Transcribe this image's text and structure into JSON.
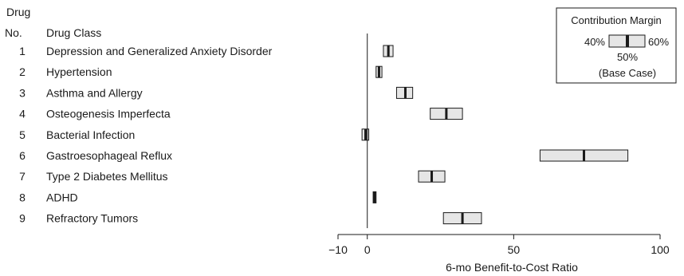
{
  "chart_data": {
    "type": "range_bar",
    "header": {
      "drug_label_line1": "Drug",
      "drug_label_line2": "No.",
      "class_label": "Drug Class"
    },
    "xlabel": "6-mo Benefit-to-Cost Ratio",
    "xlim": [
      -10,
      100
    ],
    "xticks": [
      -10,
      0,
      50,
      100
    ],
    "xtick_labels": [
      "−10",
      "0",
      "50",
      "100"
    ],
    "legend": {
      "title": "Contribution Margin",
      "low_label": "40%",
      "high_label": "60%",
      "base_label": "50%",
      "base_caption": "(Base Case)",
      "placement": "top-right"
    },
    "rows": [
      {
        "no": "1",
        "label": "Depression and Generalized Anxiety Disorder",
        "low": 5.5,
        "base": 7.2,
        "high": 8.8
      },
      {
        "no": "2",
        "label": "Hypertension",
        "low": 3.0,
        "base": 4.0,
        "high": 5.0
      },
      {
        "no": "3",
        "label": "Asthma and Allergy",
        "low": 10.0,
        "base": 13.0,
        "high": 15.5
      },
      {
        "no": "4",
        "label": "Osteogenesis Imperfecta",
        "low": 21.5,
        "base": 27.0,
        "high": 32.5
      },
      {
        "no": "5",
        "label": "Bacterial Infection",
        "low": -1.8,
        "base": -0.6,
        "high": 0.5
      },
      {
        "no": "6",
        "label": "Gastroesophageal Reflux",
        "low": 59.0,
        "base": 74.0,
        "high": 89.0
      },
      {
        "no": "7",
        "label": "Type 2 Diabetes Mellitus",
        "low": 17.5,
        "base": 22.0,
        "high": 26.5
      },
      {
        "no": "8",
        "label": "ADHD",
        "low": 2.0,
        "base": 2.5,
        "high": 3.0
      },
      {
        "no": "9",
        "label": "Refractory Tumors",
        "low": 26.0,
        "base": 32.5,
        "high": 39.0
      }
    ]
  }
}
